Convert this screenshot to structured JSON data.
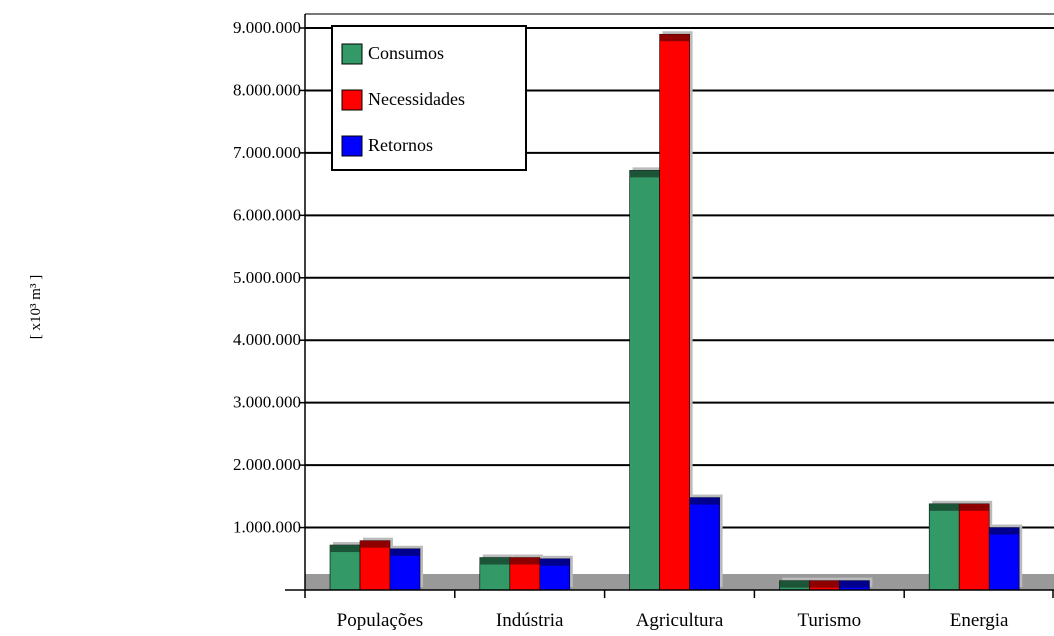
{
  "chart_data": {
    "type": "bar",
    "title": "",
    "xlabel": "",
    "ylabel": "[ x10³ m³ ]",
    "ylim": [
      0,
      9000000
    ],
    "yticks": [
      {
        "value": 1000000,
        "label": "1.000.000"
      },
      {
        "value": 2000000,
        "label": "2.000.000"
      },
      {
        "value": 3000000,
        "label": "3.000.000"
      },
      {
        "value": 4000000,
        "label": "4.000.000"
      },
      {
        "value": 5000000,
        "label": "5.000.000"
      },
      {
        "value": 6000000,
        "label": "6.000.000"
      },
      {
        "value": 7000000,
        "label": "7.000.000"
      },
      {
        "value": 8000000,
        "label": "8.000.000"
      },
      {
        "value": 9000000,
        "label": "9.000.000"
      }
    ],
    "categories": [
      "Populações",
      "Indústria",
      "Agricultura",
      "Turismo",
      "Energia"
    ],
    "series": [
      {
        "name": "Consumos",
        "color": "#339966",
        "values": [
          720000,
          520000,
          6720000,
          150000,
          1380000
        ]
      },
      {
        "name": "Necessidades",
        "color": "#ff0000",
        "values": [
          790000,
          520000,
          8900000,
          150000,
          1380000
        ]
      },
      {
        "name": "Retornos",
        "color": "#0000ff",
        "values": [
          660000,
          500000,
          1480000,
          150000,
          1000000
        ]
      }
    ],
    "grid": true,
    "legend_position": "top-left",
    "colors": {
      "floor": "#999999",
      "grid": "#000000"
    }
  }
}
